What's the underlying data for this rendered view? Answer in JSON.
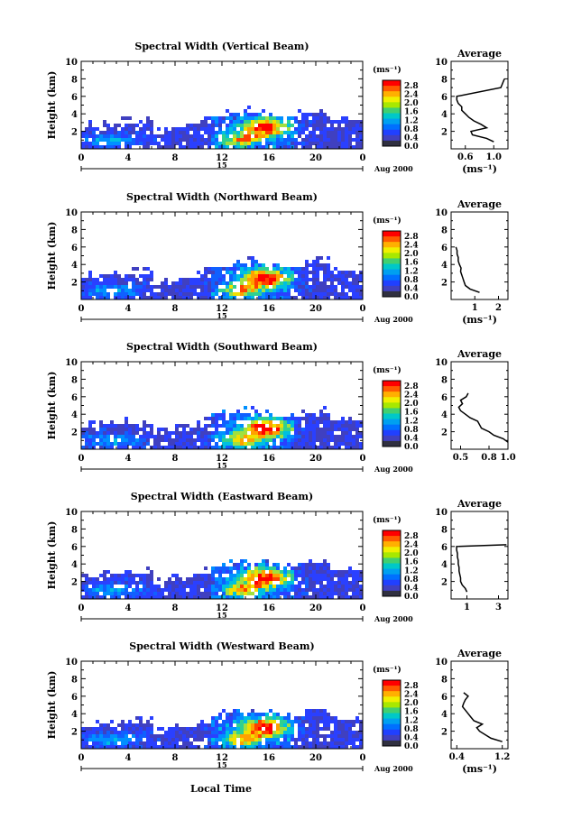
{
  "colorbar": {
    "unit": "(ms⁻¹)",
    "ticks": [
      "2.8",
      "2.4",
      "2.0",
      "1.6",
      "1.2",
      "0.8",
      "0.4",
      "0.0"
    ],
    "colors": [
      "#ff0000",
      "#ff5a00",
      "#ffb000",
      "#f0f000",
      "#a8e800",
      "#40d070",
      "#00c8c8",
      "#00a0f0",
      "#0070ff",
      "#2040ff",
      "#4040c0",
      "#303040"
    ]
  },
  "bottom": {
    "xlabel": "Local Time",
    "date_label": "Aug 2000",
    "day_label": "15"
  },
  "chart_data": [
    {
      "type": "heatmap",
      "title": "Spectral Width (Vertical Beam)",
      "ylabel": "Height (km)",
      "xlim": [
        0,
        24
      ],
      "ylim": [
        0,
        10
      ],
      "xticks": [
        "0",
        "4",
        "8",
        "12",
        "16",
        "20",
        "0"
      ],
      "yticks": [
        "2",
        "4",
        "6",
        "8",
        "10"
      ],
      "profile": {
        "title": "Average",
        "xlabel": "(ms⁻¹)",
        "xticks": [
          "0.6",
          "1.0"
        ],
        "xlim": [
          0.4,
          1.2
        ],
        "heights": [
          0.8,
          1.2,
          1.6,
          2.0,
          2.4,
          2.8,
          3.2,
          3.6,
          4.0,
          4.4,
          4.8,
          5.2,
          5.6,
          6.0,
          7.0,
          8.0
        ],
        "values": [
          1.0,
          0.9,
          0.7,
          0.68,
          0.9,
          0.82,
          0.72,
          0.65,
          0.6,
          0.55,
          0.55,
          0.5,
          0.48,
          0.48,
          1.1,
          1.15
        ]
      }
    },
    {
      "type": "heatmap",
      "title": "Spectral Width (Northward Beam)",
      "ylabel": "Height (km)",
      "xlim": [
        0,
        24
      ],
      "ylim": [
        0,
        10
      ],
      "xticks": [
        "0",
        "4",
        "8",
        "12",
        "16",
        "20",
        "0"
      ],
      "yticks": [
        "2",
        "4",
        "6",
        "8",
        "10"
      ],
      "profile": {
        "title": "Average",
        "xlabel": "(ms⁻¹)",
        "xticks": [
          "1",
          "2"
        ],
        "xlim": [
          0,
          2.4
        ],
        "heights": [
          0.8,
          1.2,
          1.6,
          2.0,
          2.4,
          2.8,
          3.2,
          3.6,
          4.0,
          4.4,
          4.8,
          5.2,
          5.6,
          6.0
        ],
        "values": [
          1.2,
          0.8,
          0.6,
          0.55,
          0.5,
          0.45,
          0.4,
          0.42,
          0.35,
          0.3,
          0.3,
          0.25,
          0.25,
          0.2
        ]
      }
    },
    {
      "type": "heatmap",
      "title": "Spectral Width (Southward Beam)",
      "ylabel": "Height (km)",
      "xlim": [
        0,
        24
      ],
      "ylim": [
        0,
        10
      ],
      "xticks": [
        "0",
        "4",
        "8",
        "12",
        "16",
        "20",
        "0"
      ],
      "yticks": [
        "2",
        "4",
        "6",
        "8",
        "10"
      ],
      "profile": {
        "title": "Average",
        "xlabel": "",
        "xticks": [
          "0.5",
          "0.8",
          "1.0"
        ],
        "xlim": [
          0.4,
          1.0
        ],
        "heights": [
          0.8,
          1.2,
          1.6,
          2.0,
          2.4,
          2.8,
          3.2,
          3.6,
          4.0,
          4.4,
          4.8,
          5.2,
          5.6,
          6.0,
          6.4
        ],
        "values": [
          1.0,
          0.95,
          0.85,
          0.8,
          0.72,
          0.7,
          0.68,
          0.6,
          0.55,
          0.5,
          0.48,
          0.52,
          0.5,
          0.56,
          0.58
        ]
      }
    },
    {
      "type": "heatmap",
      "title": "Spectral Width (Eastward Beam)",
      "ylabel": "Height (km)",
      "xlim": [
        0,
        24
      ],
      "ylim": [
        0,
        10
      ],
      "xticks": [
        "0",
        "4",
        "8",
        "12",
        "16",
        "20",
        "0"
      ],
      "yticks": [
        "2",
        "4",
        "6",
        "8",
        "10"
      ],
      "profile": {
        "title": "Average",
        "xlabel": "",
        "xticks": [
          "1",
          "3"
        ],
        "xlim": [
          0,
          3.6
        ],
        "heights": [
          0.8,
          1.2,
          1.6,
          2.0,
          2.4,
          2.8,
          3.2,
          3.6,
          4.0,
          4.4,
          4.8,
          5.2,
          5.6,
          6.0,
          6.2
        ],
        "values": [
          1.0,
          0.9,
          0.7,
          0.6,
          0.6,
          0.55,
          0.5,
          0.5,
          0.45,
          0.45,
          0.4,
          0.4,
          0.35,
          0.35,
          3.5
        ]
      }
    },
    {
      "type": "heatmap",
      "title": "Spectral Width (Westward Beam)",
      "ylabel": "Height (km)",
      "xlim": [
        0,
        24
      ],
      "ylim": [
        0,
        10
      ],
      "xticks": [
        "0",
        "4",
        "8",
        "12",
        "16",
        "20",
        "0"
      ],
      "yticks": [
        "2",
        "4",
        "6",
        "8",
        "10"
      ],
      "profile": {
        "title": "Average",
        "xlabel": "(ms⁻¹)",
        "xticks": [
          "0.4",
          "1.2"
        ],
        "xlim": [
          0.3,
          1.3
        ],
        "heights": [
          0.8,
          1.2,
          1.6,
          2.0,
          2.4,
          2.8,
          3.2,
          3.6,
          4.0,
          4.4,
          4.8,
          5.2,
          5.6,
          6.0,
          6.4
        ],
        "values": [
          1.2,
          1.0,
          0.9,
          0.8,
          0.75,
          0.85,
          0.7,
          0.65,
          0.6,
          0.55,
          0.5,
          0.52,
          0.55,
          0.6,
          0.52
        ]
      }
    }
  ]
}
